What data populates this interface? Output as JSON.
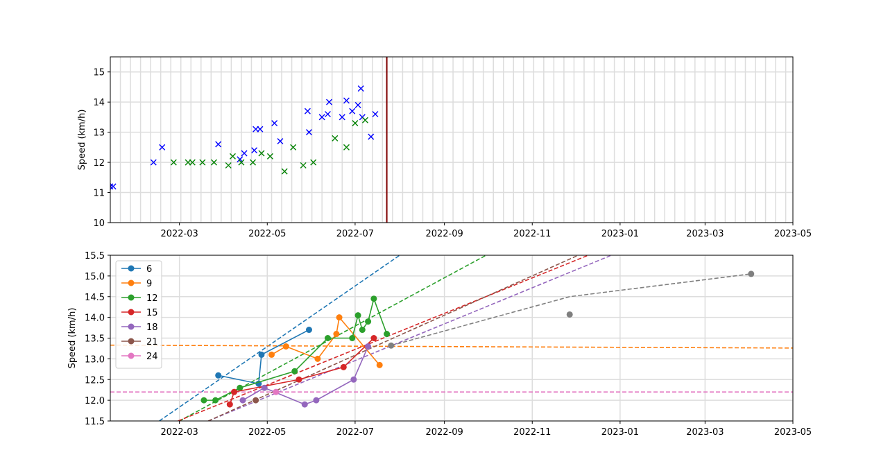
{
  "chart_data": [
    {
      "type": "scatter",
      "ylabel": "Speed (km/h)",
      "ylim": [
        10,
        15.5
      ],
      "xlim": [
        "2022-01-12",
        "2023-05-01"
      ],
      "x_ticks": [
        "2022-03",
        "2022-05",
        "2022-07",
        "2022-09",
        "2022-11",
        "2023-01",
        "2023-03",
        "2023-05"
      ],
      "y_ticks": [
        "10",
        "11",
        "12",
        "13",
        "14",
        "15"
      ],
      "grid": true,
      "vline": {
        "x": "2022-07-23",
        "color": "#800000"
      },
      "series": [
        {
          "marker": "x",
          "color": "#0000ff",
          "points": [
            [
              "2022-01-12",
              11.2
            ],
            [
              "2022-01-14",
              11.2
            ],
            [
              "2022-02-11",
              12.0
            ],
            [
              "2022-02-17",
              12.5
            ],
            [
              "2022-03-28",
              12.6
            ],
            [
              "2022-04-12",
              12.1
            ],
            [
              "2022-04-15",
              12.3
            ],
            [
              "2022-04-22",
              12.4
            ],
            [
              "2022-04-23",
              13.1
            ],
            [
              "2022-04-26",
              13.1
            ],
            [
              "2022-05-06",
              13.3
            ],
            [
              "2022-05-10",
              12.7
            ],
            [
              "2022-05-29",
              13.7
            ],
            [
              "2022-05-30",
              13.0
            ],
            [
              "2022-06-08",
              13.5
            ],
            [
              "2022-06-12",
              13.6
            ],
            [
              "2022-06-13",
              14.0
            ],
            [
              "2022-06-22",
              13.5
            ],
            [
              "2022-06-25",
              14.05
            ],
            [
              "2022-06-29",
              13.7
            ],
            [
              "2022-07-03",
              13.9
            ],
            [
              "2022-07-05",
              14.45
            ],
            [
              "2022-07-06",
              13.5
            ],
            [
              "2022-07-12",
              12.85
            ],
            [
              "2022-07-15",
              13.6
            ]
          ]
        },
        {
          "marker": "x",
          "color": "#008000",
          "points": [
            [
              "2022-02-25",
              12.0
            ],
            [
              "2022-03-07",
              12.0
            ],
            [
              "2022-03-10",
              12.0
            ],
            [
              "2022-03-17",
              12.0
            ],
            [
              "2022-03-25",
              12.0
            ],
            [
              "2022-04-04",
              11.9
            ],
            [
              "2022-04-07",
              12.2
            ],
            [
              "2022-04-13",
              12.0
            ],
            [
              "2022-04-21",
              12.0
            ],
            [
              "2022-04-27",
              12.3
            ],
            [
              "2022-05-03",
              12.2
            ],
            [
              "2022-05-13",
              11.7
            ],
            [
              "2022-05-19",
              12.5
            ],
            [
              "2022-05-26",
              11.9
            ],
            [
              "2022-06-02",
              12.0
            ],
            [
              "2022-06-17",
              12.8
            ],
            [
              "2022-06-25",
              12.5
            ],
            [
              "2022-07-01",
              13.3
            ],
            [
              "2022-07-08",
              13.4
            ]
          ]
        }
      ]
    },
    {
      "type": "line",
      "ylabel": "Speed (km/h)",
      "ylim": [
        11.5,
        15.5
      ],
      "xlim": [
        "2022-01-12",
        "2023-05-01"
      ],
      "x_ticks": [
        "2022-03",
        "2022-05",
        "2022-07",
        "2022-09",
        "2022-11",
        "2023-01",
        "2023-03",
        "2023-05"
      ],
      "y_ticks": [
        "11.5",
        "12.0",
        "12.5",
        "13.0",
        "13.5",
        "14.0",
        "14.5",
        "15.0",
        "15.5"
      ],
      "grid": true,
      "legend_position": "upper-left",
      "series": [
        {
          "name": "6",
          "color": "#1f77b4",
          "points": [
            [
              "2022-03-28",
              12.6
            ],
            [
              "2022-04-25",
              12.4
            ],
            [
              "2022-04-27",
              13.1
            ],
            [
              "2022-05-30",
              13.7
            ]
          ],
          "trend": [
            [
              "2022-02-15",
              11.5
            ],
            [
              "2022-08-01",
              15.5
            ]
          ]
        },
        {
          "name": "9",
          "color": "#ff7f0e",
          "points": [
            [
              "2022-05-04",
              13.1
            ],
            [
              "2022-05-14",
              13.3
            ],
            [
              "2022-06-05",
              13.0
            ],
            [
              "2022-06-18",
              13.6
            ],
            [
              "2022-06-20",
              14.0
            ],
            [
              "2022-07-18",
              12.85
            ]
          ],
          "trend": [
            [
              "2022-01-12",
              13.33
            ],
            [
              "2023-05-01",
              13.26
            ]
          ]
        },
        {
          "name": "12",
          "color": "#2ca02c",
          "points": [
            [
              "2022-03-18",
              12.0
            ],
            [
              "2022-03-26",
              12.0
            ],
            [
              "2022-04-12",
              12.3
            ],
            [
              "2022-05-20",
              12.7
            ],
            [
              "2022-06-12",
              13.5
            ],
            [
              "2022-06-29",
              13.5
            ],
            [
              "2022-07-03",
              14.05
            ],
            [
              "2022-07-06",
              13.7
            ],
            [
              "2022-07-10",
              13.9
            ],
            [
              "2022-07-14",
              14.45
            ],
            [
              "2022-07-23",
              13.6
            ]
          ],
          "trend": [
            [
              "2022-03-01",
              11.5
            ],
            [
              "2022-09-30",
              15.5
            ]
          ]
        },
        {
          "name": "15",
          "color": "#d62728",
          "points": [
            [
              "2022-04-05",
              11.9
            ],
            [
              "2022-04-08",
              12.2
            ],
            [
              "2022-05-23",
              12.5
            ],
            [
              "2022-06-23",
              12.8
            ],
            [
              "2022-07-14",
              13.5
            ]
          ],
          "trend": [
            [
              "2022-02-28",
              11.5
            ],
            [
              "2022-12-10",
              15.5
            ]
          ]
        },
        {
          "name": "18",
          "color": "#9467bd",
          "points": [
            [
              "2022-04-14",
              12.0
            ],
            [
              "2022-04-29",
              12.3
            ],
            [
              "2022-05-27",
              11.9
            ],
            [
              "2022-06-04",
              12.0
            ],
            [
              "2022-06-30",
              12.5
            ],
            [
              "2022-07-10",
              13.3
            ]
          ],
          "trend": [
            [
              "2022-03-21",
              11.5
            ],
            [
              "2022-12-26",
              15.5
            ]
          ]
        },
        {
          "name": "21",
          "color": "#8c564b",
          "points": [
            [
              "2022-04-23",
              12.0
            ]
          ],
          "trend": [
            [
              "2022-03-21",
              11.5
            ],
            [
              "2022-12-03",
              15.5
            ]
          ]
        },
        {
          "name": "24",
          "color": "#e377c2",
          "points": [
            [
              "2022-05-07",
              12.2
            ]
          ],
          "trend": [
            [
              "2022-01-12",
              12.2
            ],
            [
              "2023-05-01",
              12.2
            ]
          ]
        }
      ],
      "extra_series": [
        {
          "color": "#7f7f7f",
          "points": [
            [
              "2022-07-26",
              13.32
            ],
            [
              "2022-11-27",
              14.07
            ],
            [
              "2023-04-02",
              15.05
            ]
          ],
          "trend": [
            [
              "2022-07-26",
              13.32
            ],
            [
              "2022-11-27",
              14.5
            ],
            [
              "2023-04-02",
              15.05
            ]
          ]
        }
      ]
    }
  ]
}
